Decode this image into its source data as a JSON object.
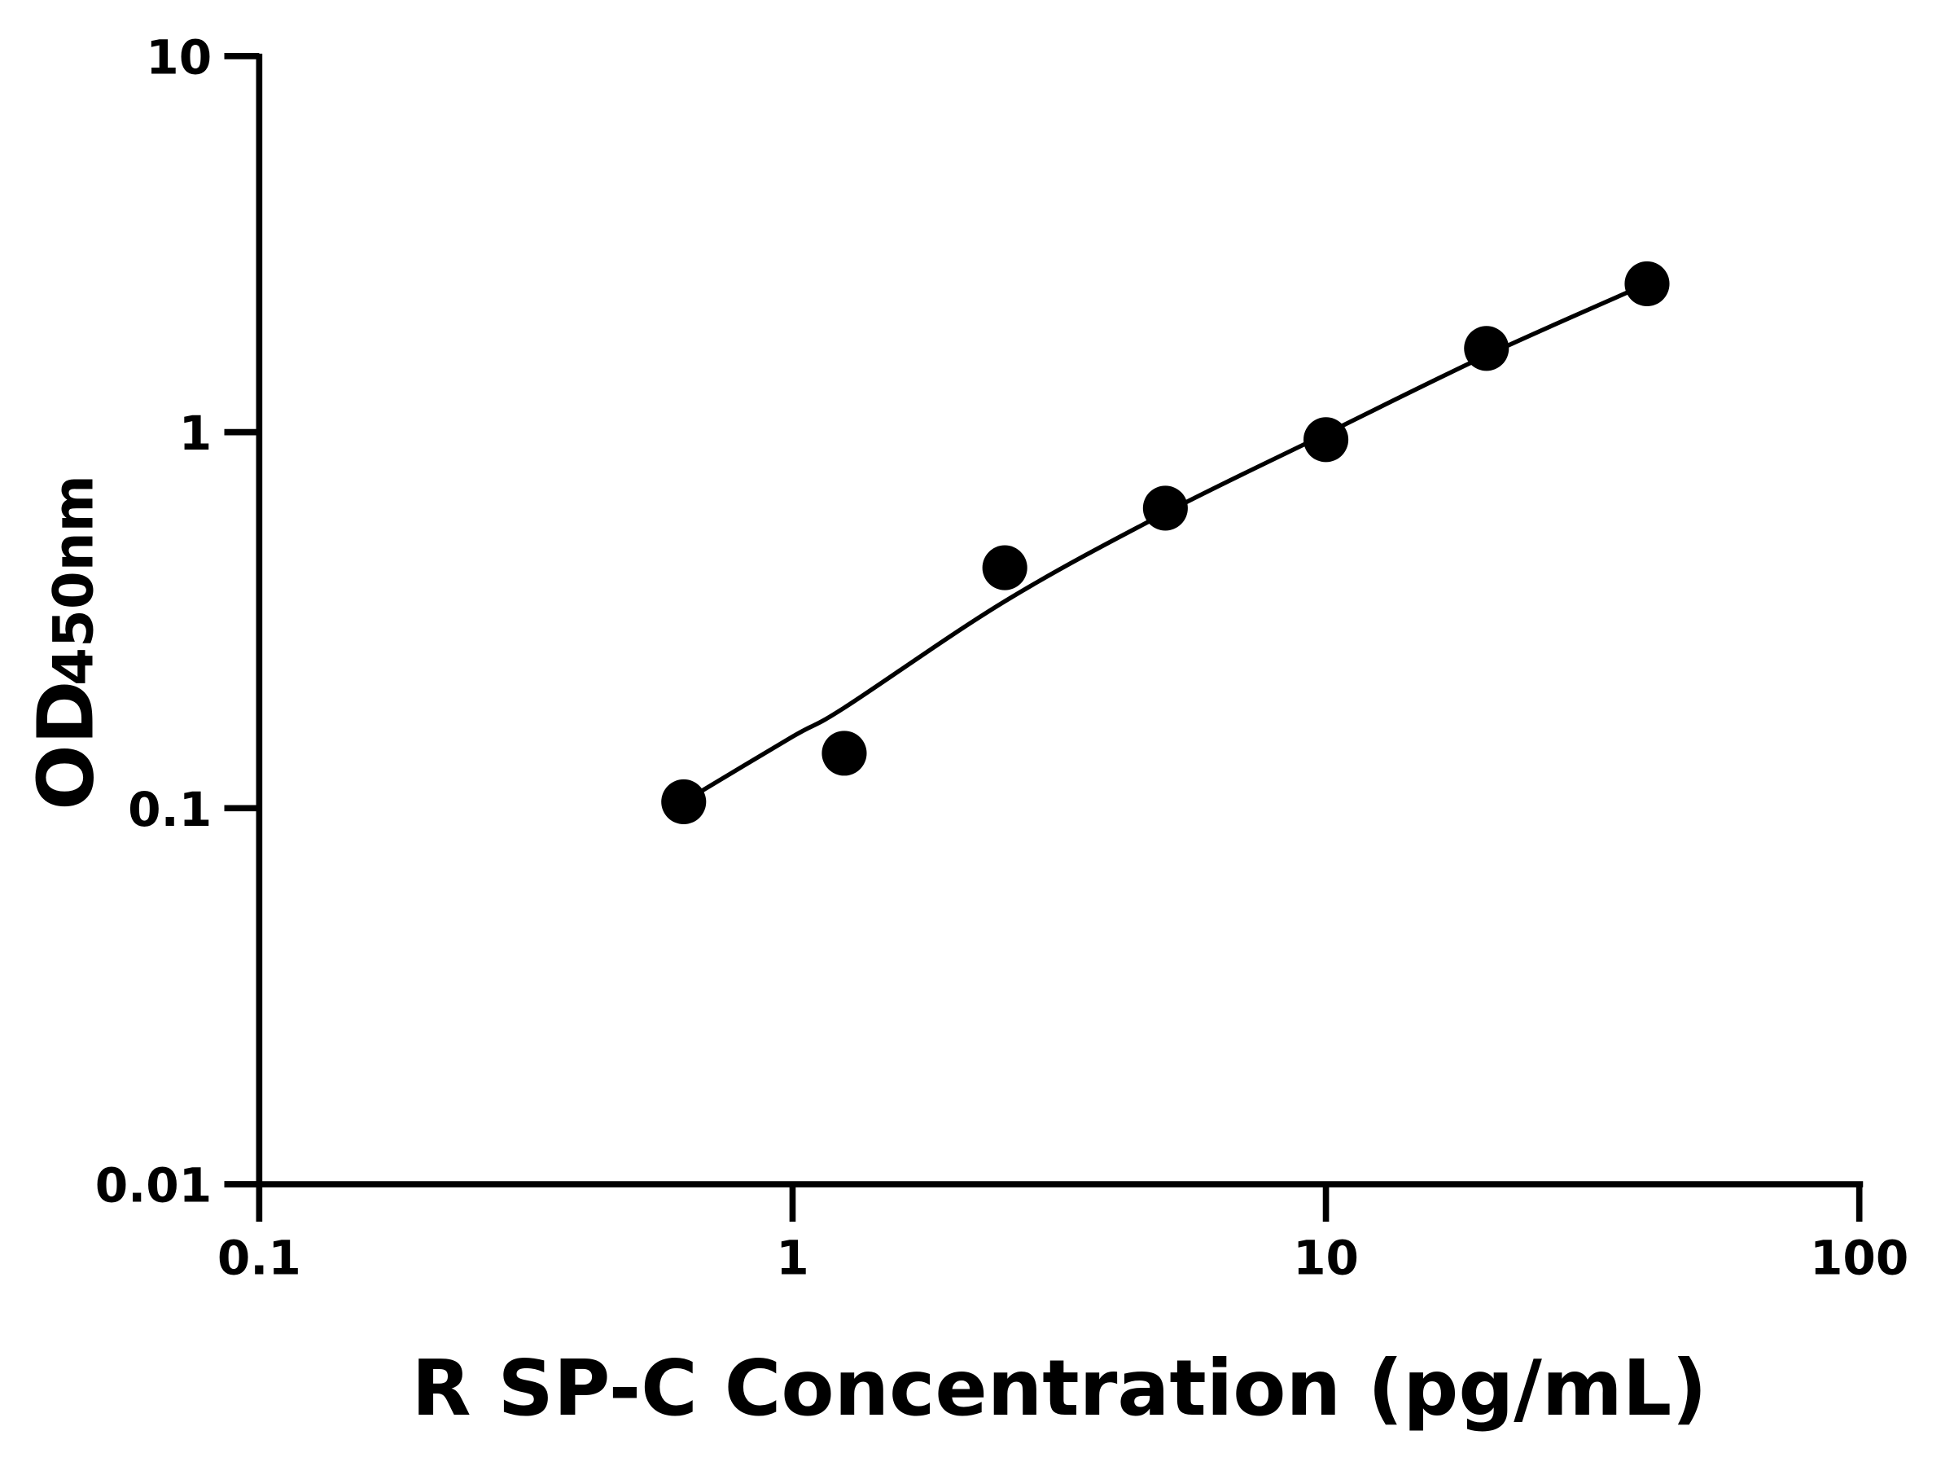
{
  "chart_data": {
    "type": "scatter",
    "title": "",
    "xlabel": "R SP-C Concentration (pg/mL)",
    "ylabel_main": "OD",
    "ylabel_sub": "450nm",
    "xscale": "log",
    "yscale": "log",
    "xlim": [
      0.1,
      100
    ],
    "ylim": [
      0.01,
      10
    ],
    "xticks": [
      "0.1",
      "1",
      "10",
      "100"
    ],
    "yticks": [
      "0.01",
      "0.1",
      "1",
      "10"
    ],
    "grid": false,
    "legend": "none",
    "series": [
      {
        "points": [
          {
            "x": 0.625,
            "y": 0.104
          },
          {
            "x": 1.25,
            "y": 0.14
          },
          {
            "x": 2.5,
            "y": 0.436
          },
          {
            "x": 5,
            "y": 0.628
          },
          {
            "x": 10,
            "y": 0.955
          },
          {
            "x": 20,
            "y": 1.67
          },
          {
            "x": 40,
            "y": 2.48
          }
        ],
        "fit_curve": [
          {
            "x": 0.625,
            "y": 0.104
          },
          {
            "x": 1,
            "y": 0.155
          },
          {
            "x": 1.25,
            "y": 0.185
          },
          {
            "x": 2.5,
            "y": 0.355
          },
          {
            "x": 5,
            "y": 0.61
          },
          {
            "x": 10,
            "y": 0.99
          },
          {
            "x": 20,
            "y": 1.6
          },
          {
            "x": 40,
            "y": 2.48
          }
        ]
      }
    ],
    "colors": {
      "marker": "#000000",
      "line": "#000000",
      "axis": "#000000"
    }
  }
}
